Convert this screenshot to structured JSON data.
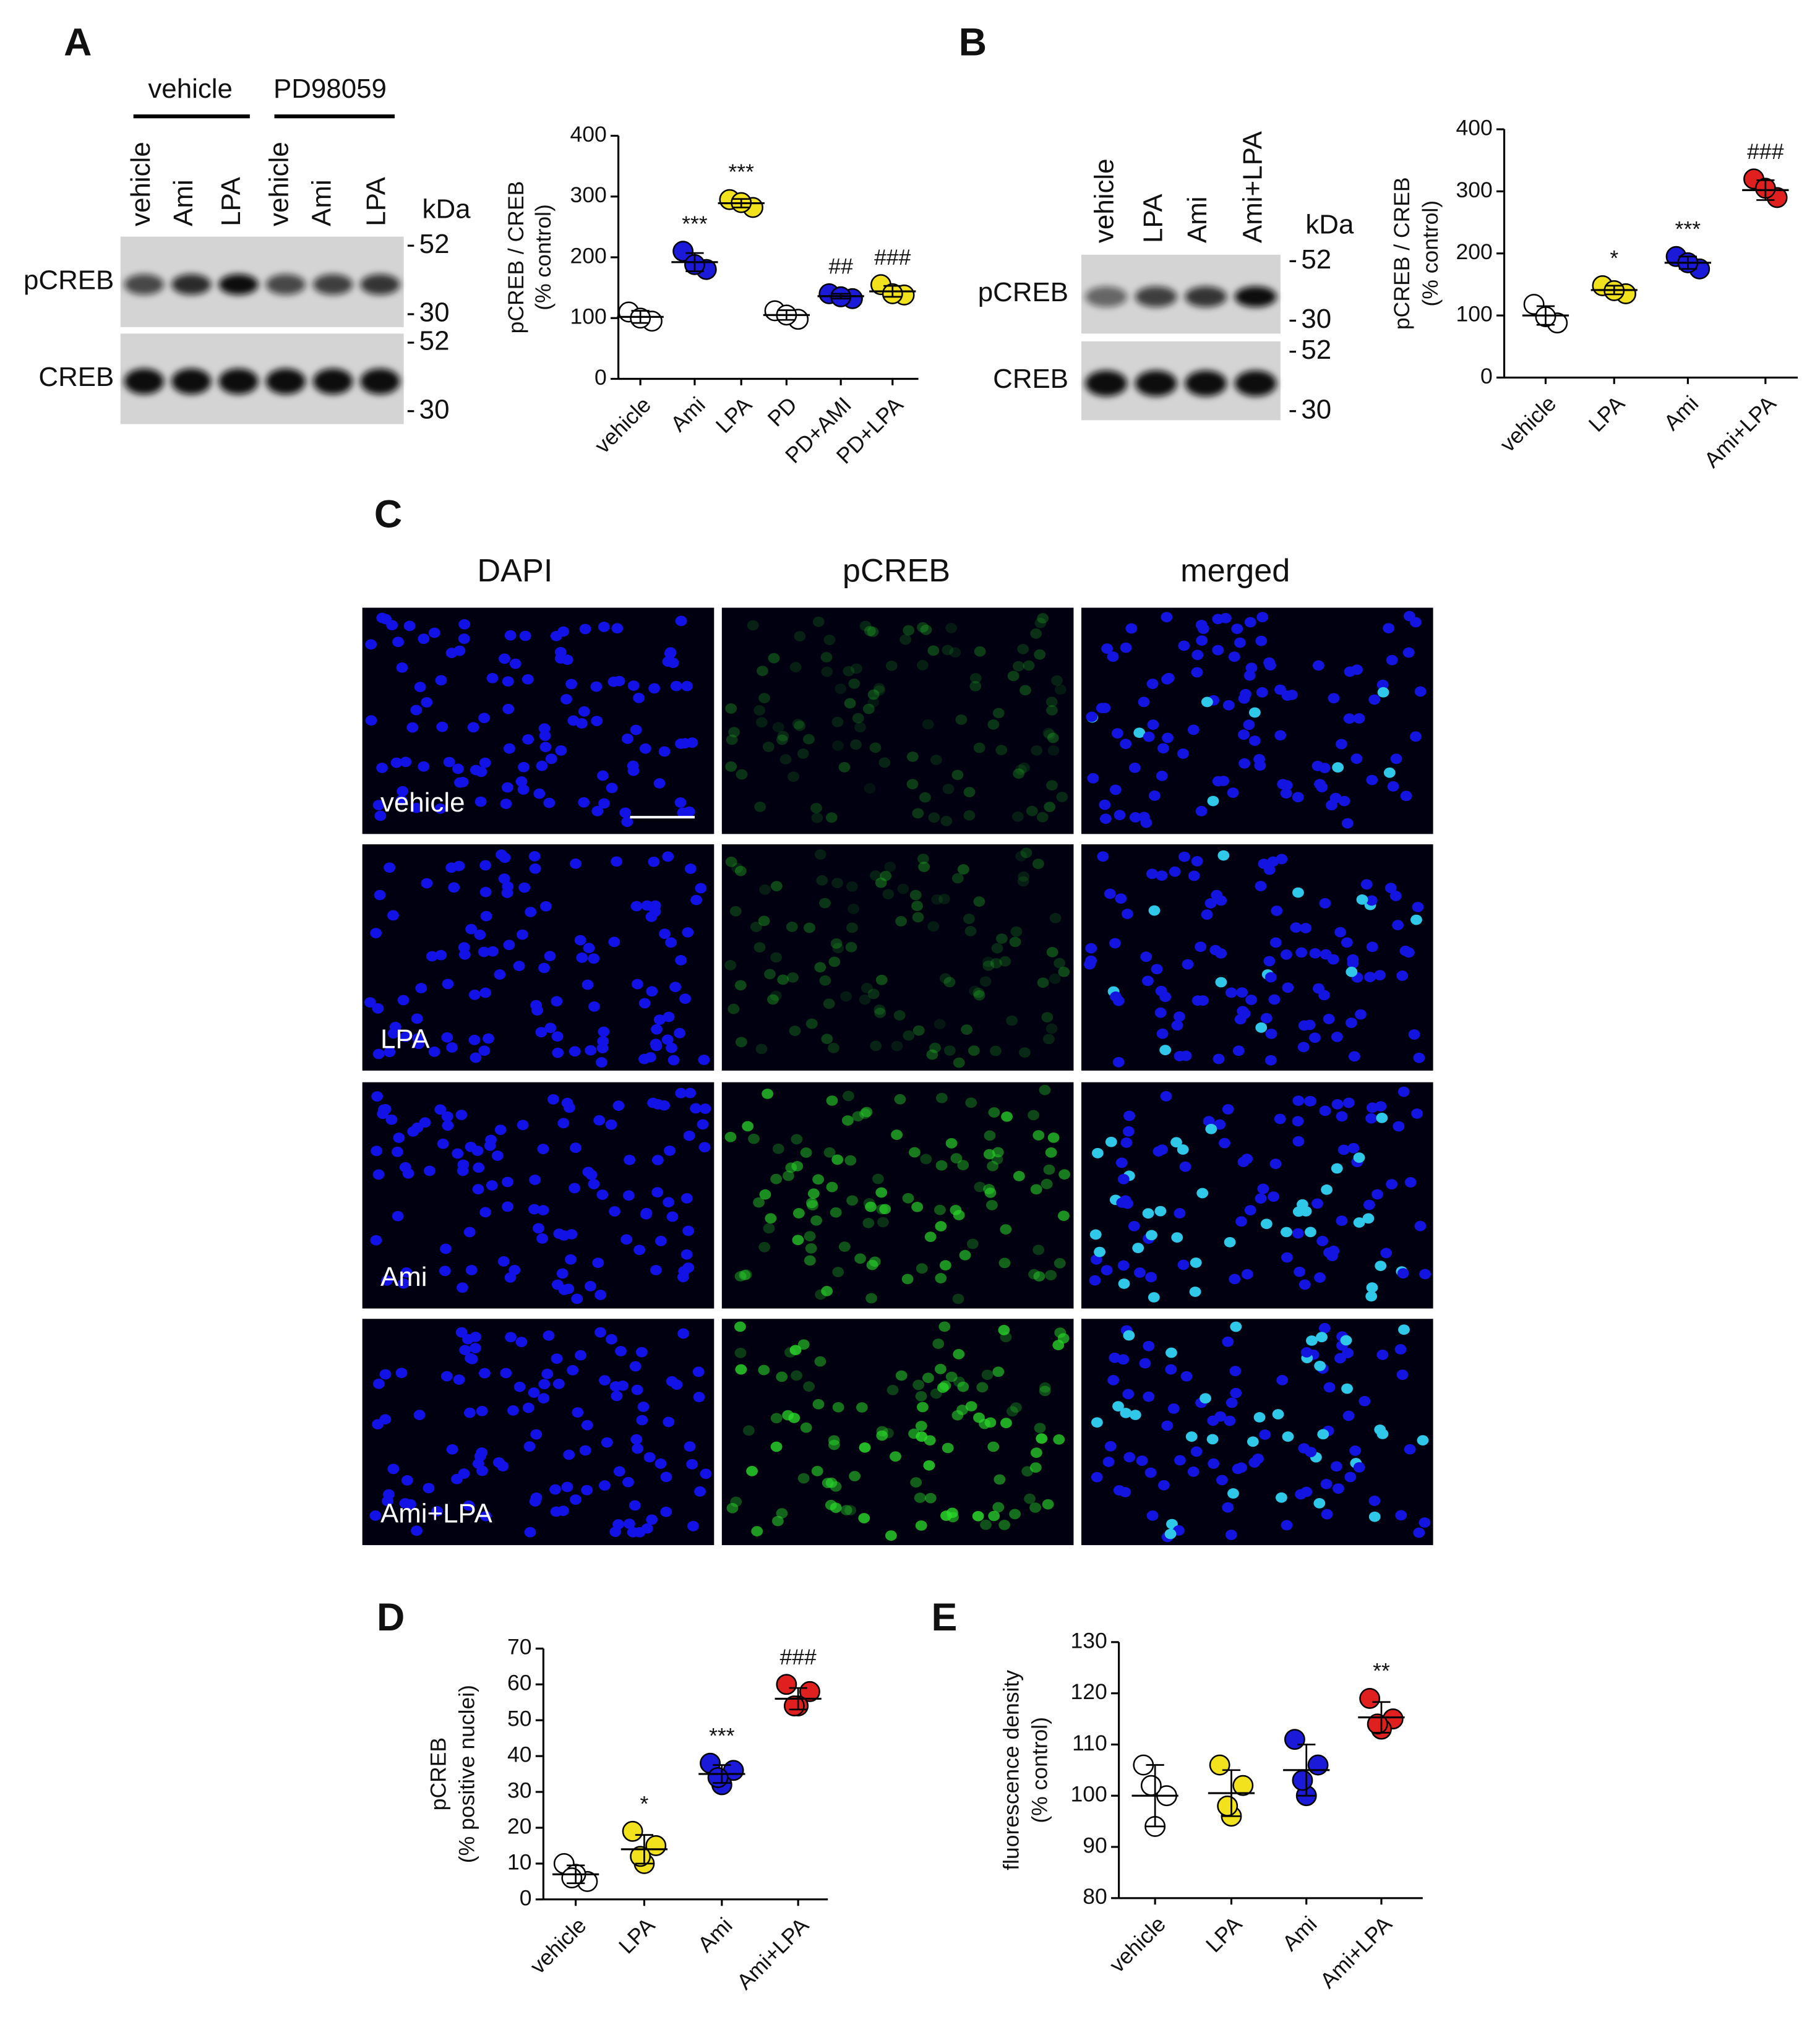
{
  "figure": {
    "panel_labels": [
      "A",
      "B",
      "C",
      "D",
      "E"
    ],
    "blot_A": {
      "groups": [
        "vehicle",
        "PD98059"
      ],
      "lanes": [
        "vehicle",
        "Ami",
        "LPA",
        "vehicle",
        "Ami",
        "LPA"
      ],
      "unit": "kDa",
      "rows": [
        "pCREB",
        "CREB"
      ],
      "markers": [
        [
          52,
          30
        ],
        [
          52,
          30
        ]
      ]
    },
    "blot_B": {
      "lanes": [
        "vehicle",
        "LPA",
        "Ami",
        "Ami+LPA"
      ],
      "unit": "kDa",
      "rows": [
        "pCREB",
        "CREB"
      ],
      "markers": [
        [
          52,
          30
        ],
        [
          52,
          30
        ]
      ]
    },
    "imaging": {
      "columns": [
        "DAPI",
        "pCREB",
        "merged"
      ],
      "rows": [
        "vehicle",
        "LPA",
        "Ami",
        "Ami+LPA"
      ]
    }
  },
  "chart_data": [
    {
      "type": "dotplot",
      "ylabel": [
        "pCREB / CREB",
        "(% control)"
      ],
      "categories": [
        "vehicle",
        "Ami",
        "LPA",
        "PD",
        "PD+AMI",
        "PD+LPA"
      ],
      "colors": [
        "#ffffff",
        "#1a1ad8",
        "#f2e21e",
        "#ffffff",
        "#1a1ad8",
        "#f2e21e"
      ],
      "points": [
        [
          110,
          95,
          100
        ],
        [
          210,
          180,
          188
        ],
        [
          295,
          282,
          290
        ],
        [
          112,
          98,
          105
        ],
        [
          140,
          132,
          135
        ],
        [
          155,
          138,
          140
        ]
      ],
      "means": [
        102,
        192,
        289,
        105,
        136,
        144
      ],
      "sd": [
        10,
        15,
        7,
        8,
        4,
        9
      ],
      "annotations": [
        null,
        "***",
        "***",
        null,
        "##",
        "###"
      ],
      "ylim": [
        0,
        400
      ],
      "yticks": [
        0,
        100,
        200,
        300,
        400
      ]
    },
    {
      "type": "dotplot",
      "ylabel": [
        "pCREB / CREB",
        "(% control)"
      ],
      "categories": [
        "vehicle",
        "LPA",
        "Ami",
        "Ami+LPA"
      ],
      "colors": [
        "#ffffff",
        "#f2e21e",
        "#1a1ad8",
        "#e0201f"
      ],
      "points": [
        [
          118,
          88,
          98
        ],
        [
          148,
          135,
          140
        ],
        [
          195,
          175,
          185
        ],
        [
          320,
          290,
          305
        ]
      ],
      "means": [
        100,
        141,
        185,
        302
      ],
      "sd": [
        15,
        7,
        10,
        16
      ],
      "annotations": [
        null,
        "*",
        "***",
        "###"
      ],
      "ylim": [
        0,
        400
      ],
      "yticks": [
        0,
        100,
        200,
        300,
        400
      ]
    },
    {
      "type": "dotplot",
      "ylabel": [
        "pCREB",
        "(% positive nuclei)"
      ],
      "categories": [
        "vehicle",
        "LPA",
        "Ami",
        "Ami+LPA"
      ],
      "colors": [
        "#ffffff",
        "#f2e21e",
        "#1a1ad8",
        "#e0201f"
      ],
      "points": [
        [
          10,
          5,
          7,
          6
        ],
        [
          19,
          15,
          10,
          12
        ],
        [
          38,
          36,
          32,
          34
        ],
        [
          60,
          58,
          54,
          54
        ]
      ],
      "means": [
        7,
        14,
        35,
        56
      ],
      "sd": [
        2.5,
        4,
        2.5,
        3
      ],
      "annotations": [
        null,
        "*",
        "***",
        "###"
      ],
      "ylim": [
        0,
        70
      ],
      "yticks": [
        0,
        10,
        20,
        30,
        40,
        50,
        60,
        70
      ]
    },
    {
      "type": "dotplot",
      "ylabel": [
        "fluorescence density",
        "(% control)"
      ],
      "categories": [
        "vehicle",
        "LPA",
        "Ami",
        "Ami+LPA"
      ],
      "colors": [
        "#ffffff",
        "#f2e21e",
        "#1a1ad8",
        "#e0201f"
      ],
      "points": [
        [
          106,
          100,
          94,
          102
        ],
        [
          106,
          102,
          96,
          98
        ],
        [
          111,
          106,
          100,
          103
        ],
        [
          119,
          115,
          113,
          114
        ]
      ],
      "means": [
        100,
        100.5,
        105,
        115.3
      ],
      "sd": [
        6,
        4.5,
        5,
        3
      ],
      "annotations": [
        null,
        null,
        null,
        "**"
      ],
      "ylim": [
        80,
        130
      ],
      "yticks": [
        80,
        90,
        100,
        110,
        120,
        130
      ]
    }
  ]
}
